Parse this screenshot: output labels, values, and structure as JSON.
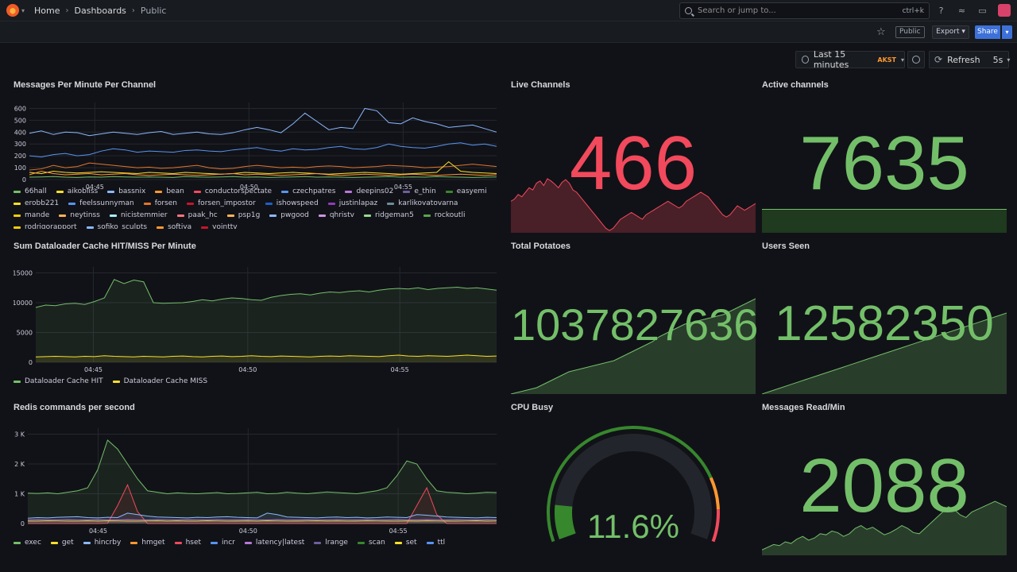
{
  "header": {
    "breadcrumb": [
      "Home",
      "Dashboards",
      "Public"
    ],
    "search_placeholder": "Search or jump to...",
    "search_shortcut": "ctrl+k"
  },
  "toolbar": {
    "public_label": "Public",
    "export_label": "Export",
    "share_label": "Share"
  },
  "time": {
    "range": "Last 15 minutes",
    "tz": "AKST",
    "refresh": "Refresh",
    "interval": "5s"
  },
  "colors": {
    "green": "#73bf69",
    "yellow": "#fade2a",
    "blue": "#8ab8ff",
    "orange": "#ff9830",
    "red": "#f2495c",
    "purple": "#b877d9",
    "darkblue": "#5794f2",
    "teal": "#37872d",
    "brown": "#e0752d"
  },
  "panels": {
    "messages": {
      "title": "Messages Per Minute Per Channel",
      "legend": [
        "66hall",
        "aikobliss",
        "bassnix",
        "bean",
        "conductorspectate",
        "czechpatres",
        "deepins02",
        "e_thin",
        "easyemi",
        "erobb221",
        "feelssunnyman",
        "forsen",
        "forsen_impostor",
        "ishowspeed",
        "justinlapaz",
        "karlikovatovarna",
        "mande",
        "neytinss",
        "nicistemmier",
        "paak_hc",
        "psp1g",
        "pwgood",
        "qhristv",
        "ridgeman5",
        "rockoutli",
        "rodrigorapport",
        "sofiko_sculpts",
        "softiya",
        "vointtv"
      ],
      "legend_colors": [
        "#73bf69",
        "#fade2a",
        "#8ab8ff",
        "#ff9830",
        "#f2495c",
        "#5794f2",
        "#b877d9",
        "#705da0",
        "#37872d",
        "#fade2a",
        "#5794f2",
        "#e0752d",
        "#c4162a",
        "#1f60c4",
        "#8f3bb8",
        "#6d8b9a",
        "#f2cc0c",
        "#ffb357",
        "#a8f0ff",
        "#ff7383",
        "#ffb357",
        "#8ab8ff",
        "#ca95e5",
        "#96d98d",
        "#56a64b",
        "#f2cc0c",
        "#8ab8ff",
        "#ff9830",
        "#c4162a"
      ]
    },
    "live": {
      "title": "Live Channels",
      "value": "466"
    },
    "active": {
      "title": "Active channels",
      "value": "7635"
    },
    "cache": {
      "title": "Sum Dataloader Cache HIT/MISS Per Minute",
      "legend": [
        "Dataloader Cache HIT",
        "Dataloader Cache MISS"
      ]
    },
    "potatoes": {
      "title": "Total Potatoes",
      "value": "1037827636"
    },
    "users": {
      "title": "Users Seen",
      "value": "12582350"
    },
    "redis": {
      "title": "Redis commands per second",
      "legend": [
        "exec",
        "get",
        "hincrby",
        "hmget",
        "hset",
        "incr",
        "latency|latest",
        "lrange",
        "scan",
        "set",
        "ttl"
      ],
      "legend_colors": [
        "#73bf69",
        "#fade2a",
        "#8ab8ff",
        "#ff9830",
        "#f2495c",
        "#5794f2",
        "#b877d9",
        "#705da0",
        "#37872d",
        "#fade2a",
        "#5794f2"
      ]
    },
    "cpu": {
      "title": "CPU Busy",
      "value": "11.6%",
      "percent": 11.6
    },
    "readmin": {
      "title": "Messages Read/Min",
      "value": "2088"
    }
  },
  "chart_data": [
    {
      "type": "line",
      "title": "Messages Per Minute Per Channel",
      "x_ticks": [
        "04:45",
        "04:50",
        "04:55"
      ],
      "y_ticks": [
        0,
        100,
        200,
        300,
        400,
        500,
        600
      ],
      "ylim": [
        0,
        650
      ],
      "series": [
        {
          "name": "66hall",
          "values": [
            20,
            22,
            25,
            20,
            18,
            22,
            20,
            25,
            22,
            20,
            22,
            20,
            18,
            25,
            22,
            20,
            22,
            25,
            20,
            22,
            18,
            20,
            22,
            25,
            20,
            22,
            20,
            18,
            20,
            22,
            25,
            20,
            22,
            20,
            25,
            22,
            20,
            18,
            20,
            22
          ]
        },
        {
          "name": "bassnix",
          "values": [
            390,
            410,
            380,
            400,
            395,
            370,
            385,
            400,
            390,
            380,
            395,
            405,
            380,
            390,
            400,
            385,
            380,
            395,
            420,
            440,
            420,
            395,
            470,
            560,
            490,
            420,
            440,
            430,
            600,
            580,
            480,
            470,
            520,
            490,
            470,
            440,
            450,
            460,
            430,
            400
          ]
        },
        {
          "name": "czechpatres",
          "values": [
            200,
            190,
            210,
            220,
            200,
            210,
            240,
            260,
            250,
            230,
            240,
            235,
            230,
            245,
            250,
            240,
            235,
            250,
            260,
            270,
            250,
            240,
            260,
            250,
            255,
            270,
            280,
            260,
            255,
            270,
            300,
            280,
            270,
            265,
            280,
            300,
            310,
            290,
            300,
            280
          ]
        },
        {
          "name": "forsen",
          "values": [
            80,
            90,
            120,
            100,
            110,
            140,
            130,
            120,
            110,
            100,
            105,
            95,
            100,
            110,
            120,
            100,
            90,
            95,
            110,
            120,
            110,
            100,
            105,
            100,
            110,
            115,
            110,
            100,
            105,
            110,
            120,
            115,
            110,
            100,
            105,
            110,
            120,
            130,
            120,
            110
          ]
        },
        {
          "name": "erobb221",
          "values": [
            60,
            50,
            70,
            60,
            55,
            60,
            65,
            60,
            55,
            50,
            60,
            55,
            50,
            60,
            55,
            50,
            45,
            50,
            60,
            55,
            50,
            55,
            60,
            55,
            50,
            45,
            50,
            55,
            60,
            55,
            50,
            45,
            50,
            55,
            60,
            150,
            70,
            60,
            55,
            50
          ]
        },
        {
          "name": "bean",
          "values": [
            40,
            70,
            50,
            40,
            45,
            50,
            40,
            45,
            50,
            40,
            35,
            40,
            45,
            40,
            35,
            40,
            45,
            50,
            40,
            45,
            40,
            35,
            40,
            45,
            50,
            40,
            35,
            40,
            45,
            40,
            35,
            40,
            45,
            40,
            35,
            40,
            45,
            40,
            35,
            40
          ]
        }
      ]
    },
    {
      "type": "line",
      "title": "Sum Dataloader Cache HIT/MISS Per Minute",
      "x_ticks": [
        "04:45",
        "04:50",
        "04:55"
      ],
      "y_ticks": [
        0,
        5000,
        10000,
        15000
      ],
      "ylim": [
        0,
        16000
      ],
      "series": [
        {
          "name": "Dataloader Cache HIT",
          "values": [
            9200,
            9600,
            9500,
            9800,
            9900,
            9700,
            10200,
            10800,
            13900,
            13200,
            13800,
            13500,
            10000,
            9900,
            9950,
            10000,
            10200,
            10500,
            10300,
            10600,
            10800,
            10700,
            10500,
            10400,
            10900,
            11200,
            11400,
            11500,
            11300,
            11600,
            11800,
            11700,
            11900,
            12000,
            11800,
            12100,
            12300,
            12400,
            12300,
            12500,
            12200,
            12400,
            12500,
            12600,
            12400,
            12500,
            12300,
            12100
          ]
        },
        {
          "name": "Dataloader Cache MISS",
          "values": [
            900,
            950,
            1000,
            950,
            900,
            1000,
            950,
            1100,
            1000,
            950,
            900,
            1000,
            950,
            900,
            1000,
            1050,
            950,
            900,
            1000,
            1050,
            950,
            1000,
            1100,
            1000,
            950,
            1050,
            1000,
            950,
            900,
            1000,
            1050,
            1000,
            1100,
            1050,
            1000,
            950,
            1100,
            1200,
            1050,
            1000,
            1100,
            1050,
            1000,
            1100,
            1200,
            1100,
            1000,
            1050
          ]
        }
      ]
    },
    {
      "type": "line",
      "title": "Redis commands per second",
      "x_ticks": [
        "04:45",
        "04:50",
        "04:55"
      ],
      "y_ticks": [
        "0",
        "1 K",
        "2 K",
        "3 K"
      ],
      "ylim": [
        0,
        3200
      ],
      "series": [
        {
          "name": "exec",
          "values": [
            1020,
            1010,
            1030,
            1000,
            1050,
            1100,
            1200,
            1800,
            2800,
            2500,
            2000,
            1500,
            1100,
            1050,
            1000,
            1030,
            1010,
            1000,
            1020,
            1040,
            1000,
            1010,
            1030,
            1050,
            1000,
            1010,
            1050,
            1020,
            1000,
            1030,
            1060,
            1040,
            1020,
            1000,
            1050,
            1100,
            1200,
            1600,
            2100,
            2000,
            1500,
            1100,
            1050,
            1030,
            1000,
            1020,
            1050,
            1040
          ]
        },
        {
          "name": "hset",
          "values": [
            0,
            0,
            0,
            0,
            0,
            0,
            0,
            0,
            10,
            600,
            1300,
            400,
            0,
            0,
            0,
            0,
            0,
            0,
            0,
            0,
            0,
            0,
            0,
            0,
            0,
            0,
            0,
            0,
            0,
            0,
            0,
            0,
            0,
            0,
            0,
            0,
            0,
            0,
            0,
            600,
            1200,
            300,
            0,
            0,
            0,
            0,
            0,
            0
          ]
        },
        {
          "name": "get",
          "values": [
            80,
            80,
            90,
            85,
            80,
            80,
            85,
            80,
            90,
            85,
            80,
            80,
            85,
            90,
            80,
            85,
            80,
            80,
            90,
            85,
            80,
            80,
            85,
            80,
            90,
            85,
            80,
            80,
            85,
            90,
            80,
            85,
            80,
            80,
            90,
            85,
            80,
            80,
            85,
            80,
            90,
            85,
            80,
            80,
            85,
            90,
            80,
            85
          ]
        },
        {
          "name": "hincrby",
          "values": [
            180,
            200,
            190,
            210,
            220,
            230,
            200,
            190,
            210,
            200,
            350,
            300,
            250,
            220,
            210,
            200,
            190,
            210,
            200,
            220,
            230,
            210,
            200,
            190,
            350,
            300,
            220,
            210,
            200,
            190,
            210,
            220,
            200,
            210,
            190,
            200,
            220,
            210,
            200,
            300,
            280,
            250,
            220,
            210,
            200,
            190,
            210,
            200
          ]
        },
        {
          "name": "scan",
          "values": [
            120,
            130,
            125,
            120,
            130,
            125,
            120,
            130,
            125,
            120,
            130,
            125,
            120,
            130,
            125,
            120,
            130,
            125,
            120,
            130,
            125,
            120,
            130,
            125,
            120,
            130,
            125,
            120,
            130,
            125,
            120,
            130,
            125,
            120,
            130,
            125,
            120,
            130,
            125,
            120,
            130,
            125,
            120,
            130,
            125,
            120,
            130,
            125
          ]
        }
      ]
    },
    {
      "type": "area",
      "title": "Live Channels",
      "values": [
        70,
        75,
        85,
        80,
        90,
        100,
        95,
        110,
        115,
        105,
        120,
        115,
        108,
        100,
        112,
        118,
        110,
        95,
        90,
        80,
        70,
        60,
        50,
        40,
        30,
        20,
        10,
        5,
        10,
        20,
        30,
        35,
        40,
        45,
        40,
        35,
        30,
        40,
        45,
        50,
        55,
        60,
        65,
        70,
        65,
        60,
        55,
        60,
        70,
        75,
        80,
        85,
        90,
        85,
        80,
        70,
        60,
        50,
        40,
        35,
        40,
        50,
        60,
        55,
        50,
        55,
        60,
        65
      ]
    },
    {
      "type": "area",
      "title": "Total Potatoes",
      "values": [
        0,
        2,
        4,
        6,
        8,
        12,
        16,
        20,
        24,
        28,
        30,
        32,
        34,
        36,
        38,
        40,
        42,
        46,
        50,
        54,
        58,
        62,
        66,
        72,
        76,
        80,
        84,
        88,
        90,
        92,
        94,
        96,
        98,
        100,
        104,
        108,
        112,
        116,
        120
      ]
    },
    {
      "type": "area",
      "title": "Users Seen",
      "values": [
        0,
        4,
        8,
        12,
        16,
        20,
        24,
        28,
        32,
        36,
        40,
        44,
        48,
        52,
        56,
        60,
        64,
        68,
        72,
        76,
        80,
        84,
        88,
        92,
        96,
        100,
        104,
        108,
        112
      ]
    },
    {
      "type": "area",
      "title": "Messages Read/Min",
      "values": [
        10,
        15,
        20,
        18,
        25,
        22,
        30,
        35,
        28,
        32,
        40,
        38,
        45,
        42,
        35,
        40,
        50,
        55,
        48,
        52,
        45,
        38,
        42,
        48,
        55,
        50,
        42,
        40,
        50,
        60,
        70,
        80,
        90,
        85,
        75,
        70,
        80,
        85,
        90,
        95,
        100,
        95,
        90
      ]
    }
  ]
}
